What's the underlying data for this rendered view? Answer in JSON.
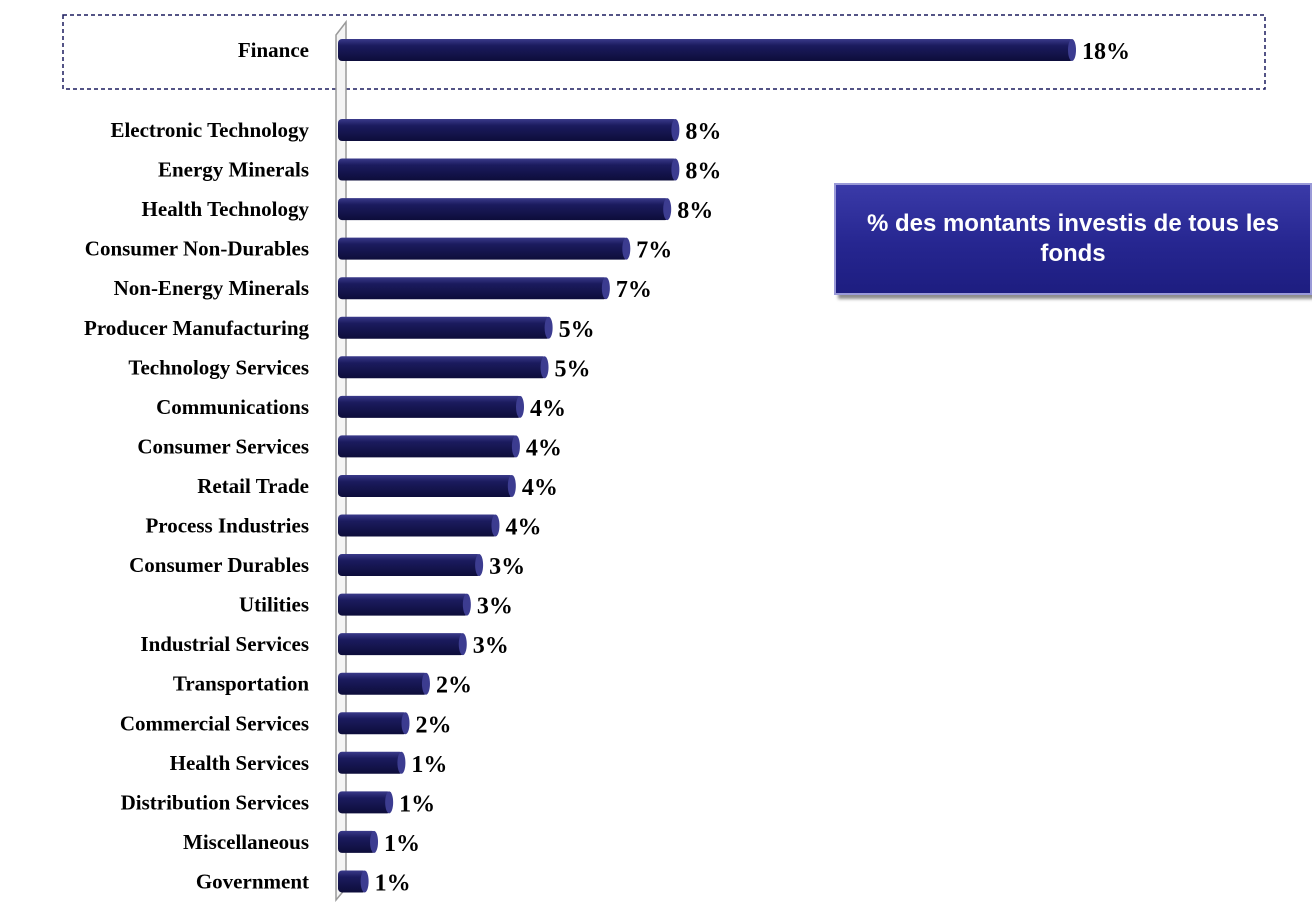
{
  "chart_data": {
    "type": "bar",
    "orientation": "horizontal",
    "categories": [
      "Finance",
      "Electronic Technology",
      "Energy Minerals",
      "Health Technology",
      "Consumer Non-Durables",
      "Non-Energy Minerals",
      "Producer Manufacturing",
      "Technology Services",
      "Communications",
      "Consumer Services",
      "Retail Trade",
      "Process Industries",
      "Consumer Durables",
      "Utilities",
      "Industrial Services",
      "Transportation",
      "Commercial Services",
      "Health Services",
      "Distribution Services",
      "Miscellaneous",
      "Government"
    ],
    "values": [
      18,
      8,
      8,
      8,
      7,
      7,
      5,
      5,
      4,
      4,
      4,
      4,
      3,
      3,
      3,
      2,
      2,
      1,
      1,
      1,
      1
    ],
    "bar_lengths_estimated": [
      18.0,
      8.3,
      8.3,
      8.1,
      7.1,
      6.6,
      5.2,
      5.1,
      4.5,
      4.4,
      4.3,
      3.9,
      3.5,
      3.2,
      3.1,
      2.2,
      1.7,
      1.6,
      1.3,
      0.93,
      0.7
    ],
    "value_labels": [
      "18%",
      "8%",
      "8%",
      "8%",
      "7%",
      "7%",
      "5%",
      "5%",
      "4%",
      "4%",
      "4%",
      "4%",
      "3%",
      "3%",
      "3%",
      "2%",
      "2%",
      "1%",
      "1%",
      "1%",
      "1%"
    ],
    "title": "",
    "xlabel": "",
    "ylabel": "",
    "xlim": [
      0,
      18
    ],
    "grid": false,
    "highlighted_category": "Finance",
    "bar_color": "#1b1b5e",
    "legend": {
      "text": "% des montants investis de tous les fonds",
      "placement": "right",
      "background": "#262690"
    }
  }
}
